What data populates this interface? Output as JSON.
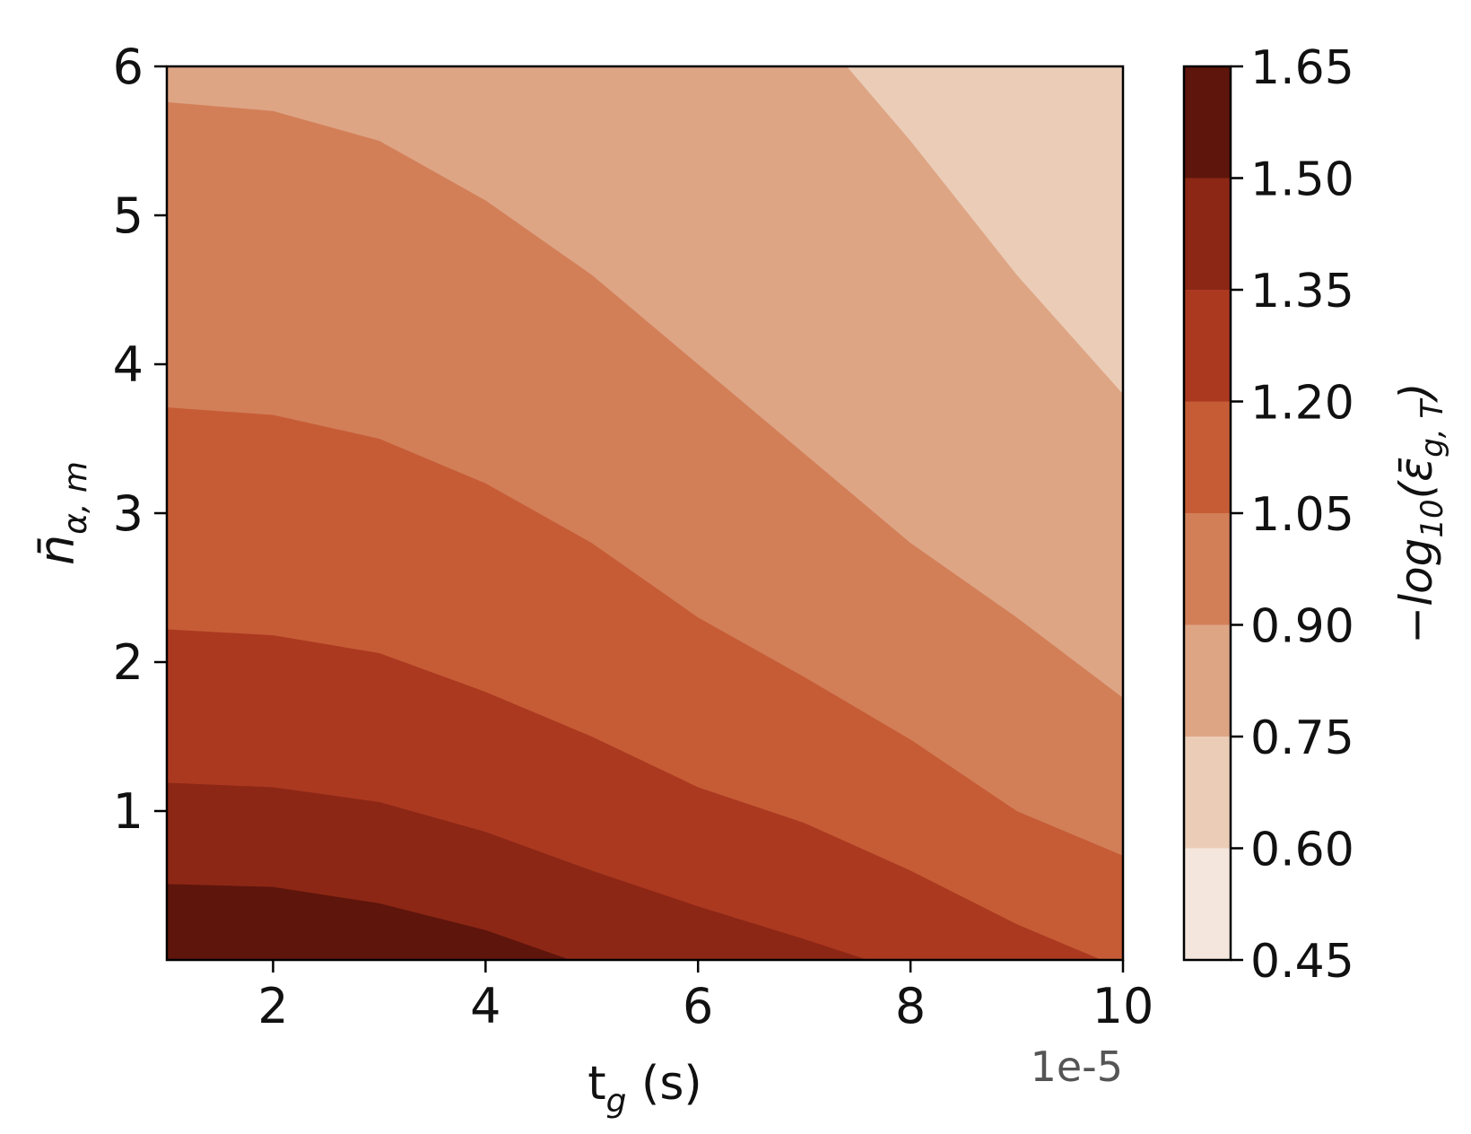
{
  "chart_data": {
    "type": "contourf",
    "xlabel": "t_g (s)",
    "ylabel": "n̄_{α,m}",
    "x_offset_label": "1e-5",
    "x_scale": 1e-05,
    "xlim": [
      1,
      10
    ],
    "ylim": [
      0,
      6
    ],
    "x_ticks": [
      2,
      4,
      6,
      8,
      10
    ],
    "y_ticks": [
      1,
      2,
      3,
      4,
      5,
      6
    ],
    "colorbar": {
      "label": "−log10(ε̄_{g,T})",
      "levels": [
        0.45,
        0.6,
        0.75,
        0.9,
        1.05,
        1.2,
        1.35,
        1.5,
        1.65
      ],
      "tick_labels": [
        "0.45",
        "0.60",
        "0.75",
        "0.90",
        "1.05",
        "1.20",
        "1.35",
        "1.50",
        "1.65"
      ],
      "colors": [
        "#f4e6dd",
        "#ebcdb7",
        "#dea585",
        "#d27f58",
        "#c65c36",
        "#ab3920",
        "#8c2716",
        "#5e150b"
      ]
    },
    "contour_boundaries": [
      {
        "level": 1.5,
        "points": [
          [
            1,
            0.51
          ],
          [
            2,
            0.49
          ],
          [
            3,
            0.38
          ],
          [
            4,
            0.2
          ],
          [
            4.8,
            0
          ]
        ]
      },
      {
        "level": 1.35,
        "points": [
          [
            1,
            1.19
          ],
          [
            2,
            1.16
          ],
          [
            3,
            1.06
          ],
          [
            4,
            0.86
          ],
          [
            5,
            0.6
          ],
          [
            6,
            0.36
          ],
          [
            7,
            0.14
          ],
          [
            7.6,
            0
          ]
        ]
      },
      {
        "level": 1.2,
        "points": [
          [
            1,
            2.22
          ],
          [
            2,
            2.18
          ],
          [
            3,
            2.06
          ],
          [
            4,
            1.8
          ],
          [
            5,
            1.5
          ],
          [
            6,
            1.16
          ],
          [
            7,
            0.92
          ],
          [
            8,
            0.6
          ],
          [
            9,
            0.24
          ],
          [
            9.8,
            0
          ]
        ]
      },
      {
        "level": 1.05,
        "points": [
          [
            1,
            3.71
          ],
          [
            2,
            3.66
          ],
          [
            3,
            3.5
          ],
          [
            4,
            3.2
          ],
          [
            5,
            2.8
          ],
          [
            6,
            2.3
          ],
          [
            7,
            1.9
          ],
          [
            8,
            1.48
          ],
          [
            9,
            1.0
          ],
          [
            10,
            0.7
          ]
        ]
      },
      {
        "level": 0.9,
        "points": [
          [
            1,
            5.76
          ],
          [
            2,
            5.7
          ],
          [
            3,
            5.5
          ],
          [
            4,
            5.1
          ],
          [
            5,
            4.6
          ],
          [
            6,
            4.0
          ],
          [
            7,
            3.4
          ],
          [
            8,
            2.8
          ],
          [
            9,
            2.3
          ],
          [
            10,
            1.76
          ]
        ]
      },
      {
        "level": 0.75,
        "points": [
          [
            7.4,
            6
          ],
          [
            8,
            5.5
          ],
          [
            9,
            4.6
          ],
          [
            10,
            3.8
          ]
        ]
      }
    ]
  }
}
